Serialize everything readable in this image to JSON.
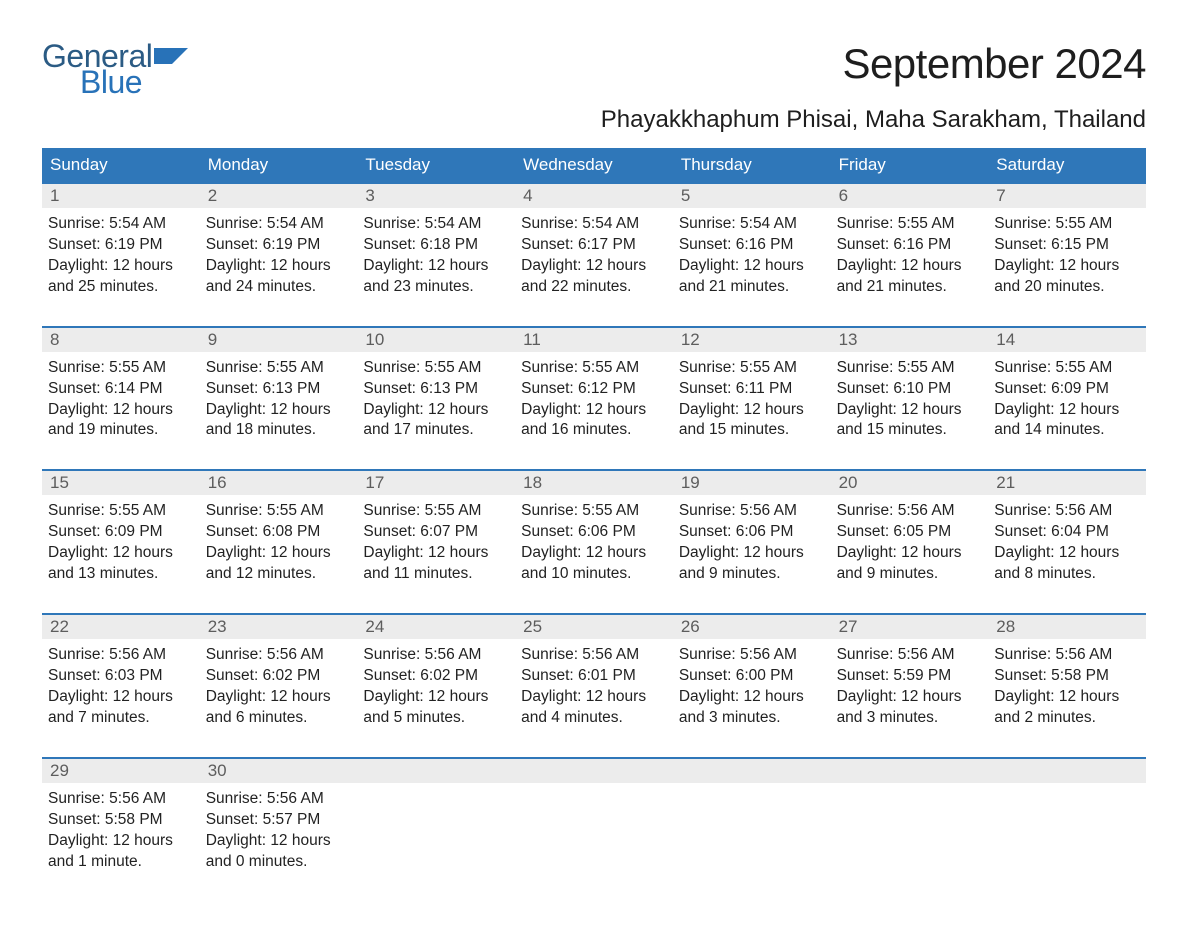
{
  "logo": {
    "word1": "General",
    "word2": "Blue",
    "text_color": "#2b5b84",
    "accent_color": "#2872b8"
  },
  "title": "September 2024",
  "location": "Phayakkhaphum Phisai, Maha Sarakham, Thailand",
  "colors": {
    "header_bg": "#2f77b9",
    "header_text": "#ffffff",
    "daybar_bg": "#ececec",
    "daybar_border": "#2f77b9",
    "daynum_text": "#5d5d5d",
    "body_text": "#222222",
    "page_bg": "#ffffff"
  },
  "typography": {
    "title_size_pt": 32,
    "location_size_pt": 18,
    "header_size_pt": 13,
    "body_size_pt": 12,
    "font_family": "Arial"
  },
  "day_headers": [
    "Sunday",
    "Monday",
    "Tuesday",
    "Wednesday",
    "Thursday",
    "Friday",
    "Saturday"
  ],
  "weeks": [
    [
      {
        "day": "1",
        "sunrise": "Sunrise: 5:54 AM",
        "sunset": "Sunset: 6:19 PM",
        "dl1": "Daylight: 12 hours",
        "dl2": "and 25 minutes."
      },
      {
        "day": "2",
        "sunrise": "Sunrise: 5:54 AM",
        "sunset": "Sunset: 6:19 PM",
        "dl1": "Daylight: 12 hours",
        "dl2": "and 24 minutes."
      },
      {
        "day": "3",
        "sunrise": "Sunrise: 5:54 AM",
        "sunset": "Sunset: 6:18 PM",
        "dl1": "Daylight: 12 hours",
        "dl2": "and 23 minutes."
      },
      {
        "day": "4",
        "sunrise": "Sunrise: 5:54 AM",
        "sunset": "Sunset: 6:17 PM",
        "dl1": "Daylight: 12 hours",
        "dl2": "and 22 minutes."
      },
      {
        "day": "5",
        "sunrise": "Sunrise: 5:54 AM",
        "sunset": "Sunset: 6:16 PM",
        "dl1": "Daylight: 12 hours",
        "dl2": "and 21 minutes."
      },
      {
        "day": "6",
        "sunrise": "Sunrise: 5:55 AM",
        "sunset": "Sunset: 6:16 PM",
        "dl1": "Daylight: 12 hours",
        "dl2": "and 21 minutes."
      },
      {
        "day": "7",
        "sunrise": "Sunrise: 5:55 AM",
        "sunset": "Sunset: 6:15 PM",
        "dl1": "Daylight: 12 hours",
        "dl2": "and 20 minutes."
      }
    ],
    [
      {
        "day": "8",
        "sunrise": "Sunrise: 5:55 AM",
        "sunset": "Sunset: 6:14 PM",
        "dl1": "Daylight: 12 hours",
        "dl2": "and 19 minutes."
      },
      {
        "day": "9",
        "sunrise": "Sunrise: 5:55 AM",
        "sunset": "Sunset: 6:13 PM",
        "dl1": "Daylight: 12 hours",
        "dl2": "and 18 minutes."
      },
      {
        "day": "10",
        "sunrise": "Sunrise: 5:55 AM",
        "sunset": "Sunset: 6:13 PM",
        "dl1": "Daylight: 12 hours",
        "dl2": "and 17 minutes."
      },
      {
        "day": "11",
        "sunrise": "Sunrise: 5:55 AM",
        "sunset": "Sunset: 6:12 PM",
        "dl1": "Daylight: 12 hours",
        "dl2": "and 16 minutes."
      },
      {
        "day": "12",
        "sunrise": "Sunrise: 5:55 AM",
        "sunset": "Sunset: 6:11 PM",
        "dl1": "Daylight: 12 hours",
        "dl2": "and 15 minutes."
      },
      {
        "day": "13",
        "sunrise": "Sunrise: 5:55 AM",
        "sunset": "Sunset: 6:10 PM",
        "dl1": "Daylight: 12 hours",
        "dl2": "and 15 minutes."
      },
      {
        "day": "14",
        "sunrise": "Sunrise: 5:55 AM",
        "sunset": "Sunset: 6:09 PM",
        "dl1": "Daylight: 12 hours",
        "dl2": "and 14 minutes."
      }
    ],
    [
      {
        "day": "15",
        "sunrise": "Sunrise: 5:55 AM",
        "sunset": "Sunset: 6:09 PM",
        "dl1": "Daylight: 12 hours",
        "dl2": "and 13 minutes."
      },
      {
        "day": "16",
        "sunrise": "Sunrise: 5:55 AM",
        "sunset": "Sunset: 6:08 PM",
        "dl1": "Daylight: 12 hours",
        "dl2": "and 12 minutes."
      },
      {
        "day": "17",
        "sunrise": "Sunrise: 5:55 AM",
        "sunset": "Sunset: 6:07 PM",
        "dl1": "Daylight: 12 hours",
        "dl2": "and 11 minutes."
      },
      {
        "day": "18",
        "sunrise": "Sunrise: 5:55 AM",
        "sunset": "Sunset: 6:06 PM",
        "dl1": "Daylight: 12 hours",
        "dl2": "and 10 minutes."
      },
      {
        "day": "19",
        "sunrise": "Sunrise: 5:56 AM",
        "sunset": "Sunset: 6:06 PM",
        "dl1": "Daylight: 12 hours",
        "dl2": "and 9 minutes."
      },
      {
        "day": "20",
        "sunrise": "Sunrise: 5:56 AM",
        "sunset": "Sunset: 6:05 PM",
        "dl1": "Daylight: 12 hours",
        "dl2": "and 9 minutes."
      },
      {
        "day": "21",
        "sunrise": "Sunrise: 5:56 AM",
        "sunset": "Sunset: 6:04 PM",
        "dl1": "Daylight: 12 hours",
        "dl2": "and 8 minutes."
      }
    ],
    [
      {
        "day": "22",
        "sunrise": "Sunrise: 5:56 AM",
        "sunset": "Sunset: 6:03 PM",
        "dl1": "Daylight: 12 hours",
        "dl2": "and 7 minutes."
      },
      {
        "day": "23",
        "sunrise": "Sunrise: 5:56 AM",
        "sunset": "Sunset: 6:02 PM",
        "dl1": "Daylight: 12 hours",
        "dl2": "and 6 minutes."
      },
      {
        "day": "24",
        "sunrise": "Sunrise: 5:56 AM",
        "sunset": "Sunset: 6:02 PM",
        "dl1": "Daylight: 12 hours",
        "dl2": "and 5 minutes."
      },
      {
        "day": "25",
        "sunrise": "Sunrise: 5:56 AM",
        "sunset": "Sunset: 6:01 PM",
        "dl1": "Daylight: 12 hours",
        "dl2": "and 4 minutes."
      },
      {
        "day": "26",
        "sunrise": "Sunrise: 5:56 AM",
        "sunset": "Sunset: 6:00 PM",
        "dl1": "Daylight: 12 hours",
        "dl2": "and 3 minutes."
      },
      {
        "day": "27",
        "sunrise": "Sunrise: 5:56 AM",
        "sunset": "Sunset: 5:59 PM",
        "dl1": "Daylight: 12 hours",
        "dl2": "and 3 minutes."
      },
      {
        "day": "28",
        "sunrise": "Sunrise: 5:56 AM",
        "sunset": "Sunset: 5:58 PM",
        "dl1": "Daylight: 12 hours",
        "dl2": "and 2 minutes."
      }
    ],
    [
      {
        "day": "29",
        "sunrise": "Sunrise: 5:56 AM",
        "sunset": "Sunset: 5:58 PM",
        "dl1": "Daylight: 12 hours",
        "dl2": "and 1 minute."
      },
      {
        "day": "30",
        "sunrise": "Sunrise: 5:56 AM",
        "sunset": "Sunset: 5:57 PM",
        "dl1": "Daylight: 12 hours",
        "dl2": "and 0 minutes."
      },
      {
        "empty": true
      },
      {
        "empty": true
      },
      {
        "empty": true
      },
      {
        "empty": true
      },
      {
        "empty": true
      }
    ]
  ]
}
